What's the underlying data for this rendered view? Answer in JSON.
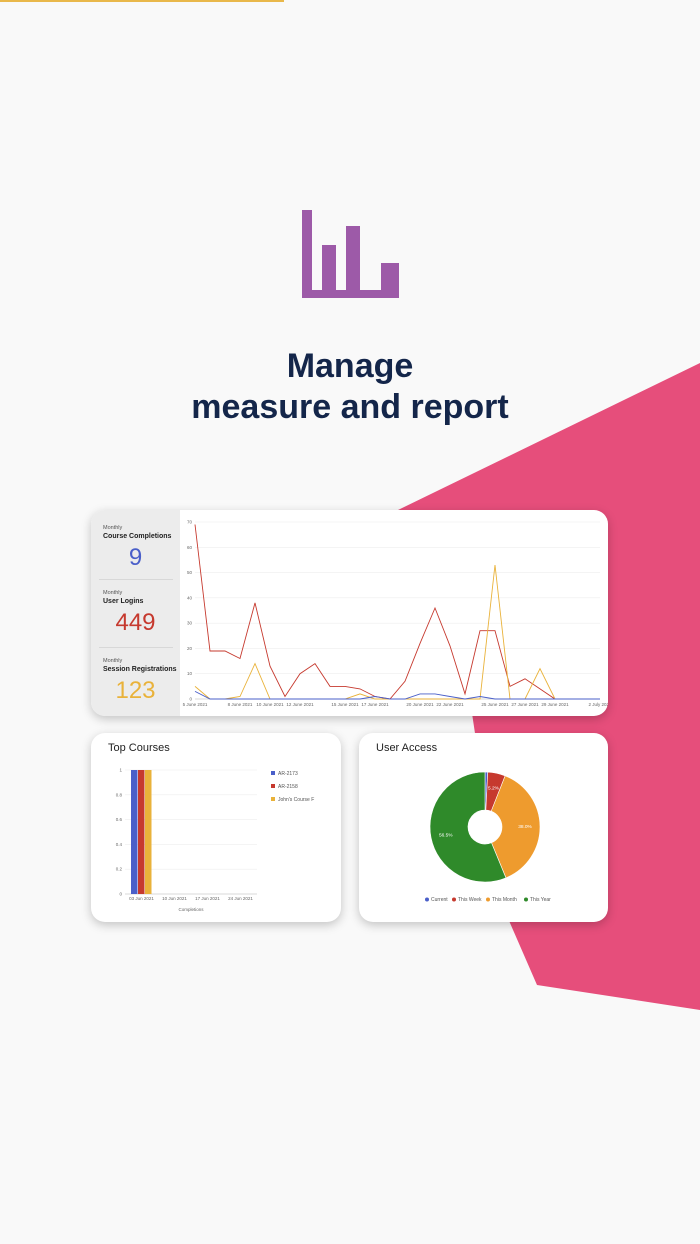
{
  "headline": {
    "line1": "Manage",
    "line2": "measure and report"
  },
  "colors": {
    "pink": "#e64e7b",
    "purple": "#9d5aa8",
    "navy": "#14264a",
    "accent_bar": "#e9b84a"
  },
  "hero_icon": "bar-chart-icon",
  "stats": [
    {
      "period": "Monthly",
      "name": "Course Completions",
      "value": "9",
      "color": "#4a5fc9"
    },
    {
      "period": "Monthly",
      "name": "User Logins",
      "value": "449",
      "color": "#c6392e"
    },
    {
      "period": "Monthly",
      "name": "Session Registrations",
      "value": "123",
      "color": "#e9b23a"
    }
  ],
  "chart_data": [
    {
      "type": "line",
      "title": "",
      "x": [
        "5 June 2021",
        "6 June 2021",
        "7 June 2021",
        "8 June 2021",
        "9 June 2021",
        "10 June 2021",
        "11 June 2021",
        "12 June 2021",
        "13 June 2021",
        "14 June 2021",
        "15 June 2021",
        "16 June 2021",
        "17 June 2021",
        "18 June 2021",
        "19 June 2021",
        "20 June 2021",
        "21 June 2021",
        "22 June 2021",
        "23 June 2021",
        "24 June 2021",
        "25 June 2021",
        "26 June 2021",
        "27 June 2021",
        "28 June 2021",
        "29 June 2021",
        "30 June 2021",
        "1 July 2021",
        "2 July 2021"
      ],
      "xticks": [
        "5 June 2021",
        "8 June 2021",
        "10 June 2021",
        "12 June 2021",
        "15 June 2021",
        "17 June 2021",
        "20 June 2021",
        "22 June 2021",
        "25 June 2021",
        "27 June 2021",
        "29 June 2021",
        "2 July 2021"
      ],
      "ylim": [
        0,
        70
      ],
      "yticks": [
        0,
        10,
        20,
        30,
        40,
        50,
        60,
        70
      ],
      "grid": true,
      "series": [
        {
          "color": "#c6392e",
          "values": [
            69,
            19,
            19,
            16,
            38,
            13,
            1,
            10,
            14,
            5,
            5,
            4,
            1,
            0,
            7,
            22,
            36,
            21,
            2,
            27,
            27,
            5,
            8,
            4,
            0,
            0,
            0,
            0
          ]
        },
        {
          "color": "#e9b23a",
          "values": [
            5,
            0,
            0,
            1,
            14,
            0,
            0,
            0,
            0,
            0,
            0,
            2,
            0,
            0,
            0,
            0,
            0,
            0,
            0,
            0,
            53,
            0,
            0,
            12,
            0,
            0,
            0,
            0
          ]
        },
        {
          "color": "#4a5fc9",
          "values": [
            3,
            0,
            0,
            0,
            0,
            0,
            0,
            0,
            0,
            0,
            0,
            0,
            1,
            0,
            0,
            2,
            2,
            1,
            0,
            1,
            0,
            0,
            0,
            0,
            0,
            0,
            0,
            0
          ]
        }
      ]
    },
    {
      "type": "bar",
      "title": "Top Courses",
      "xlabel": "Completions",
      "categories": [
        "03 Jun 2021",
        "10 Jun 2021",
        "17 Jun 2021",
        "24 Jun 2021"
      ],
      "ylim": [
        0,
        1
      ],
      "yticks": [
        "0",
        "0.2",
        "0.4",
        "0.6",
        "0.8",
        "1"
      ],
      "series": [
        {
          "name": "AR-2173",
          "color": "#4a5fc9",
          "values": [
            1,
            0,
            0,
            0
          ]
        },
        {
          "name": "AR-2158",
          "color": "#c6392e",
          "values": [
            1,
            0,
            0,
            0
          ]
        },
        {
          "name": "John's Course F",
          "color": "#e9b23a",
          "values": [
            1,
            0,
            0,
            0
          ]
        }
      ],
      "legend": "right"
    },
    {
      "type": "pie",
      "title": "User Access",
      "donut": true,
      "slices": [
        {
          "name": "Current",
          "value": 0.8,
          "color": "#4a5fc9",
          "label": ""
        },
        {
          "name": "This Week",
          "value": 5.2,
          "color": "#c6392e",
          "label": "5.2%"
        },
        {
          "name": "This Month",
          "value": 38.0,
          "color": "#ee9b2e",
          "label": "38.0%"
        },
        {
          "name": "This Year",
          "value": 56.5,
          "color": "#2f8a2a",
          "label": "56.5%"
        }
      ],
      "legend": "bottom"
    }
  ]
}
